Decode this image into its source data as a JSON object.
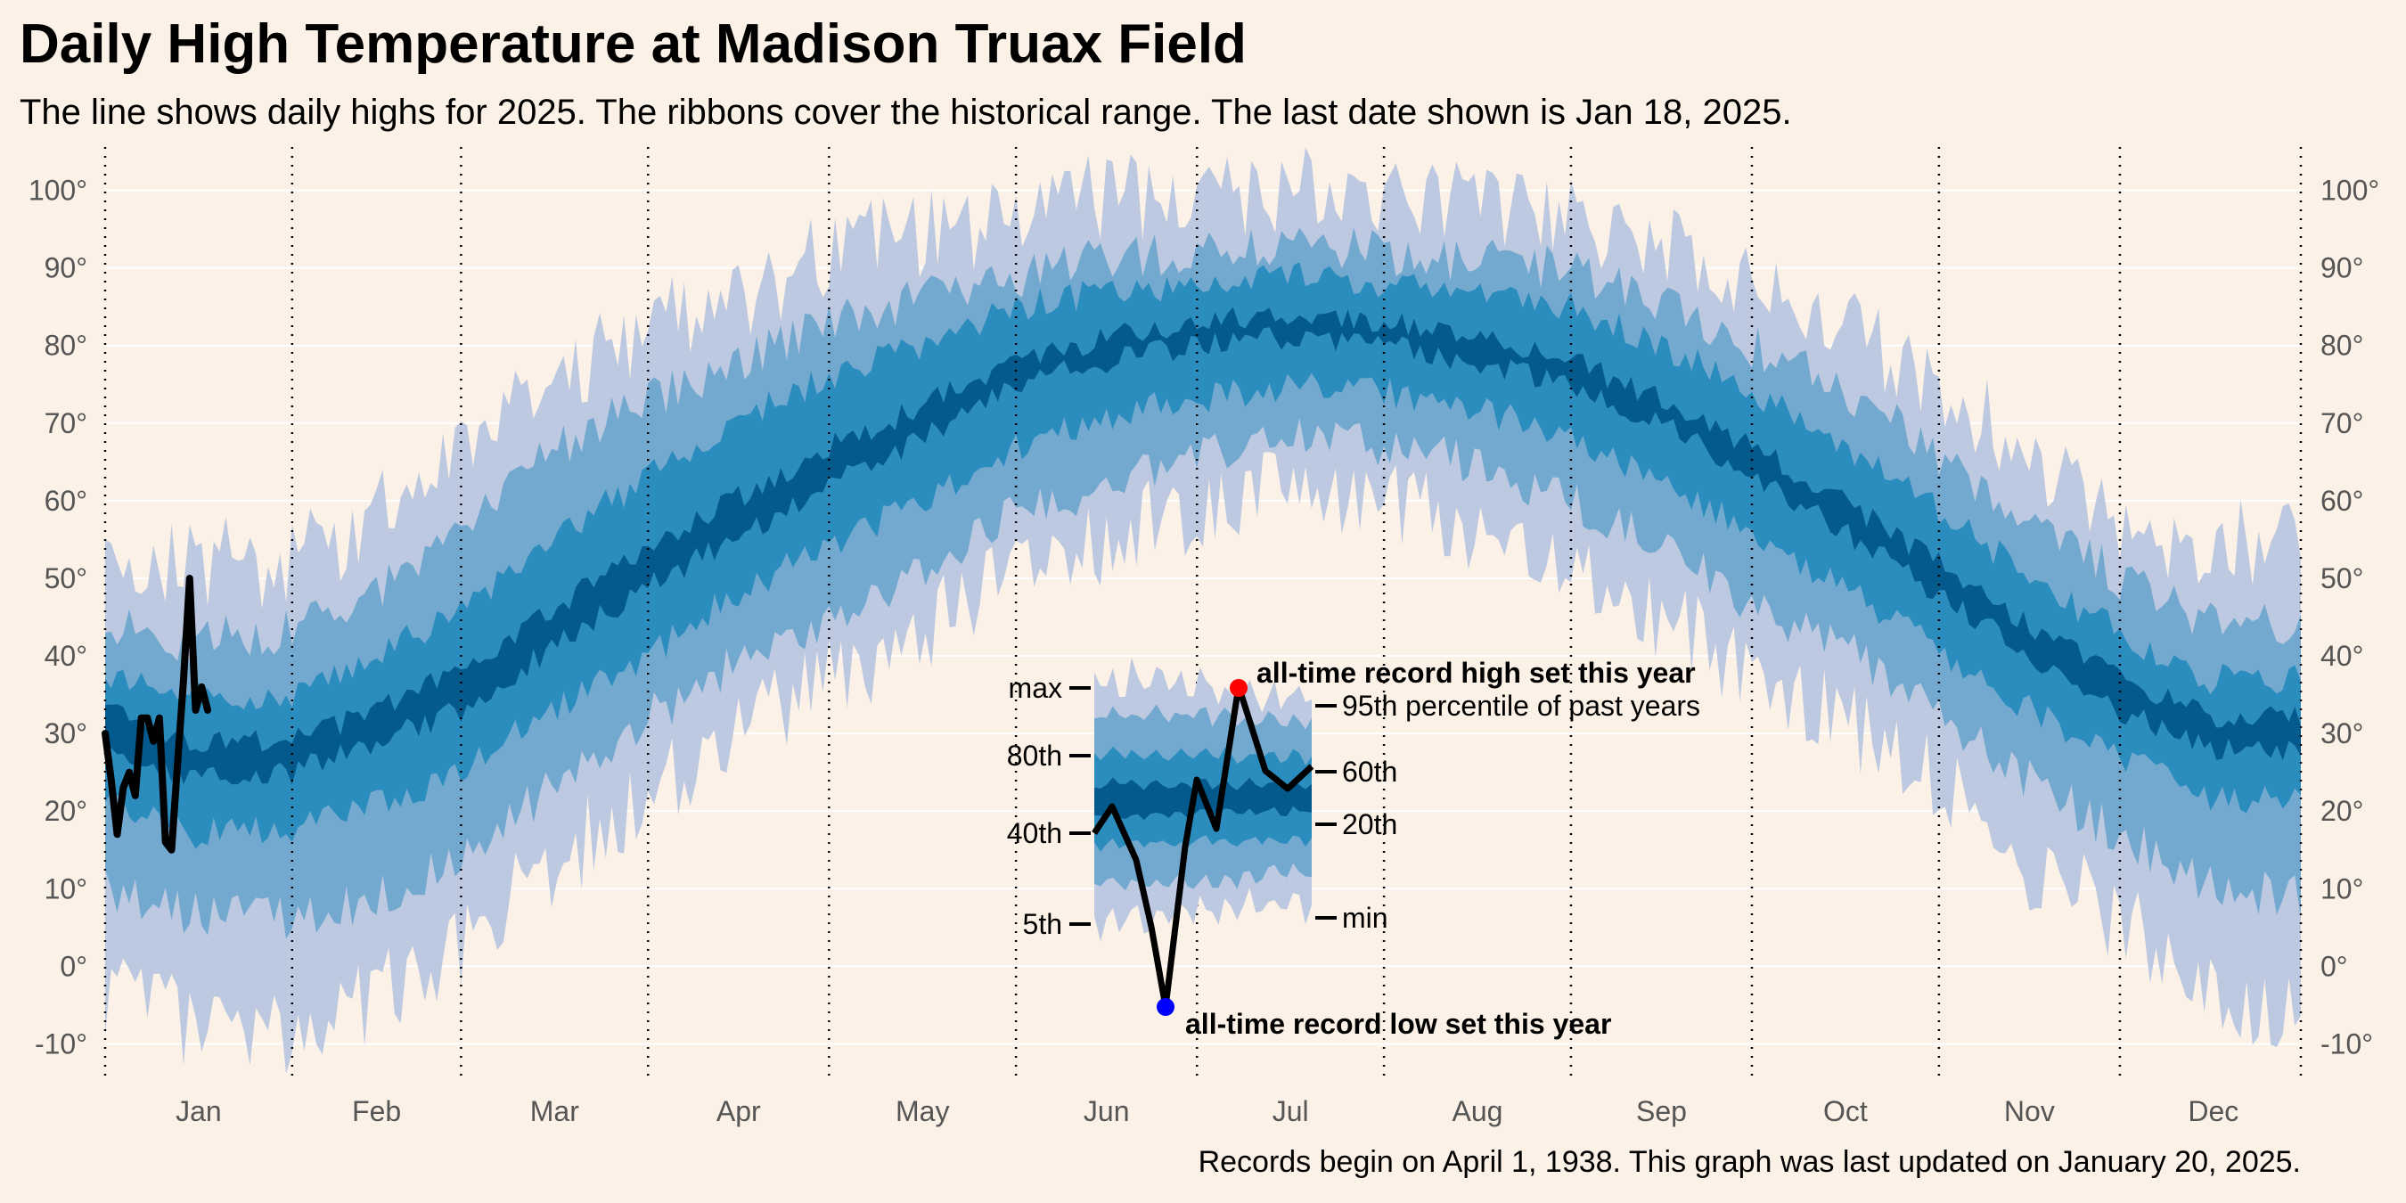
{
  "title": "Daily High Temperature at Madison Truax Field",
  "subtitle": "The line shows daily highs for 2025. The ribbons cover the historical range. The last date shown is Jan 18, 2025.",
  "caption": "Records begin on April 1, 1938. This graph was last updated on January 20, 2025.",
  "colors": {
    "background": "#fbf1e6",
    "band_min_max": "#bdc9e1",
    "band_5_95": "#74a9cf",
    "band_20_80": "#2b8cbe",
    "band_40_60": "#045a8d",
    "line": "#000000",
    "record_high": "#ff0000",
    "record_low": "#0000ff"
  },
  "chart_data": {
    "type": "area",
    "ylim": [
      -15,
      105
    ],
    "y_ticks": [
      -10,
      0,
      10,
      20,
      30,
      40,
      50,
      60,
      70,
      80,
      90,
      100
    ],
    "y_tick_labels": [
      "-10°",
      "0°",
      "10°",
      "20°",
      "30°",
      "40°",
      "50°",
      "60°",
      "70°",
      "80°",
      "90°",
      "100°"
    ],
    "x_month_labels": [
      "Jan",
      "Feb",
      "Mar",
      "Apr",
      "May",
      "Jun",
      "Jul",
      "Aug",
      "Sep",
      "Oct",
      "Nov",
      "Dec"
    ],
    "x_month_start_days": [
      1,
      32,
      60,
      91,
      121,
      152,
      182,
      213,
      244,
      274,
      305,
      335
    ],
    "x_days_in_year": 365,
    "grid": true,
    "climatology_points": [
      {
        "day": 1,
        "min": -3,
        "p5": 10,
        "p20": 22,
        "p40": 28,
        "p60": 33,
        "p80": 37,
        "p95": 44,
        "max": 52
      },
      {
        "day": 15,
        "min": -8,
        "p5": 7,
        "p20": 17,
        "p40": 24,
        "p60": 29,
        "p80": 35,
        "p95": 42,
        "max": 52
      },
      {
        "day": 32,
        "min": -10,
        "p5": 6,
        "p20": 18,
        "p40": 25,
        "p60": 29,
        "p80": 35,
        "p95": 43,
        "max": 52
      },
      {
        "day": 46,
        "min": -4,
        "p5": 9,
        "p20": 21,
        "p40": 29,
        "p60": 33,
        "p80": 40,
        "p95": 48,
        "max": 58
      },
      {
        "day": 60,
        "min": 3,
        "p5": 14,
        "p20": 25,
        "p40": 33,
        "p60": 38,
        "p80": 46,
        "p95": 56,
        "max": 66
      },
      {
        "day": 75,
        "min": 13,
        "p5": 23,
        "p20": 33,
        "p40": 41,
        "p60": 46,
        "p80": 55,
        "p95": 66,
        "max": 76
      },
      {
        "day": 91,
        "min": 22,
        "p5": 32,
        "p20": 40,
        "p40": 49,
        "p60": 54,
        "p80": 63,
        "p95": 73,
        "max": 83
      },
      {
        "day": 105,
        "min": 30,
        "p5": 39,
        "p20": 48,
        "p40": 55,
        "p60": 60,
        "p80": 70,
        "p95": 78,
        "max": 86
      },
      {
        "day": 121,
        "min": 37,
        "p5": 45,
        "p20": 54,
        "p40": 62,
        "p60": 67,
        "p80": 76,
        "p95": 83,
        "max": 92
      },
      {
        "day": 136,
        "min": 43,
        "p5": 51,
        "p20": 60,
        "p40": 68,
        "p60": 72,
        "p80": 80,
        "p95": 86,
        "max": 94
      },
      {
        "day": 152,
        "min": 50,
        "p5": 58,
        "p20": 67,
        "p40": 75,
        "p60": 78,
        "p80": 85,
        "p95": 89,
        "max": 97
      },
      {
        "day": 167,
        "min": 55,
        "p5": 62,
        "p20": 71,
        "p40": 78,
        "p60": 81,
        "p80": 87,
        "p95": 91,
        "max": 99
      },
      {
        "day": 182,
        "min": 59,
        "p5": 66,
        "p20": 73,
        "p40": 80,
        "p60": 83,
        "p80": 88,
        "p95": 92,
        "max": 100
      },
      {
        "day": 197,
        "min": 61,
        "p5": 68,
        "p20": 75,
        "p40": 81,
        "p60": 84,
        "p80": 89,
        "p95": 93,
        "max": 100
      },
      {
        "day": 213,
        "min": 59,
        "p5": 67,
        "p20": 74,
        "p40": 80,
        "p60": 83,
        "p80": 88,
        "p95": 92,
        "max": 99
      },
      {
        "day": 228,
        "min": 57,
        "p5": 65,
        "p20": 72,
        "p40": 78,
        "p60": 81,
        "p80": 87,
        "p95": 91,
        "max": 98
      },
      {
        "day": 244,
        "min": 52,
        "p5": 60,
        "p20": 68,
        "p40": 75,
        "p60": 78,
        "p80": 85,
        "p95": 90,
        "max": 96
      },
      {
        "day": 259,
        "min": 45,
        "p5": 54,
        "p20": 62,
        "p40": 70,
        "p60": 73,
        "p80": 80,
        "p95": 86,
        "max": 93
      },
      {
        "day": 274,
        "min": 38,
        "p5": 47,
        "p20": 56,
        "p40": 63,
        "p60": 67,
        "p80": 74,
        "p95": 80,
        "max": 88
      },
      {
        "day": 289,
        "min": 32,
        "p5": 41,
        "p20": 49,
        "p40": 56,
        "p60": 60,
        "p80": 67,
        "p95": 74,
        "max": 82
      },
      {
        "day": 305,
        "min": 23,
        "p5": 32,
        "p20": 41,
        "p40": 48,
        "p60": 52,
        "p80": 59,
        "p95": 66,
        "max": 75
      },
      {
        "day": 320,
        "min": 13,
        "p5": 24,
        "p20": 33,
        "p40": 40,
        "p60": 44,
        "p80": 50,
        "p95": 58,
        "max": 66
      },
      {
        "day": 335,
        "min": 6,
        "p5": 17,
        "p20": 27,
        "p40": 33,
        "p60": 37,
        "p80": 43,
        "p95": 50,
        "max": 58
      },
      {
        "day": 350,
        "min": -4,
        "p5": 10,
        "p20": 22,
        "p40": 28,
        "p60": 32,
        "p80": 37,
        "p95": 44,
        "max": 54
      },
      {
        "day": 365,
        "min": -5,
        "p5": 9,
        "p20": 21,
        "p40": 28,
        "p60": 32,
        "p80": 37,
        "p95": 44,
        "max": 55
      }
    ],
    "series": [
      {
        "name": "2025",
        "days": [
          1,
          2,
          3,
          4,
          5,
          6,
          7,
          8,
          9,
          10,
          11,
          12,
          13,
          14,
          15,
          16,
          17,
          18
        ],
        "values": [
          30,
          24,
          17,
          23,
          25,
          22,
          32,
          32,
          29,
          32,
          16,
          15,
          26,
          37,
          50,
          33,
          36,
          33
        ]
      }
    ],
    "legend_inset": {
      "band_labels_left": [
        "max",
        "80th",
        "40th",
        "5th"
      ],
      "band_labels_right": [
        "95th percentile of past years",
        "60th",
        "20th",
        "min"
      ],
      "record_high_label": "all-time record high set this year",
      "record_low_label": "all-time record low set this year"
    }
  }
}
